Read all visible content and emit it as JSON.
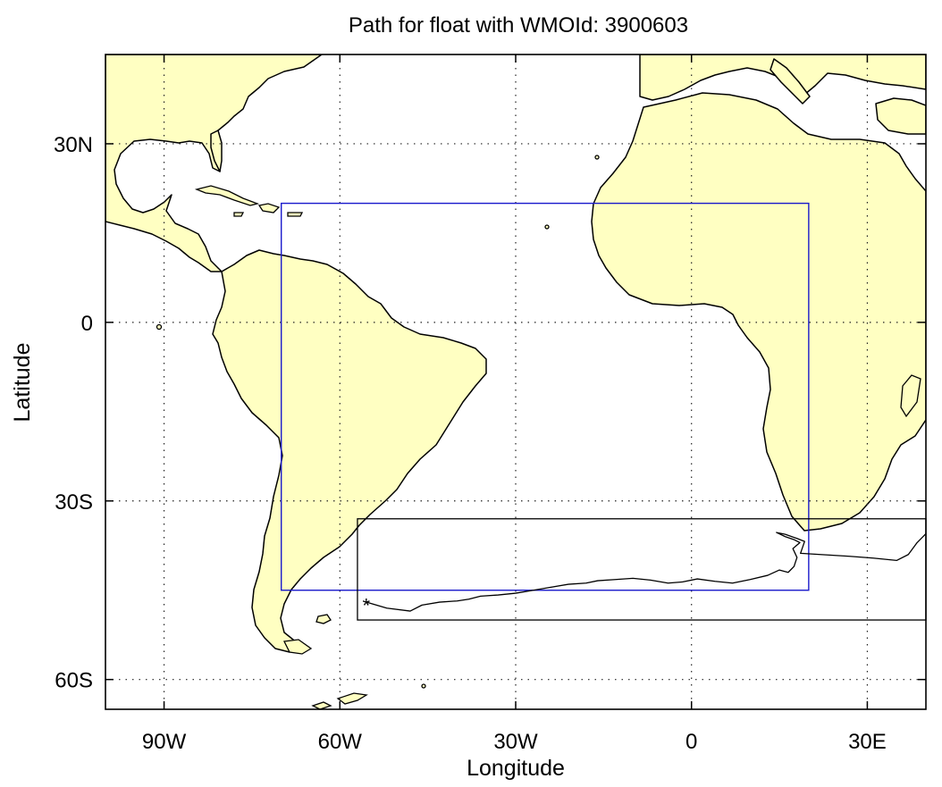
{
  "title": "Path for float with WMOId: 3900603",
  "x_axis": {
    "label": "Longitude",
    "ticks": [
      {
        "value": -90,
        "label": "90W"
      },
      {
        "value": -60,
        "label": "60W"
      },
      {
        "value": -30,
        "label": "30W"
      },
      {
        "value": 0,
        "label": "0"
      },
      {
        "value": 30,
        "label": "30E"
      }
    ],
    "range": [
      -100,
      40
    ]
  },
  "y_axis": {
    "label": "Latitude",
    "ticks": [
      {
        "value": 30,
        "label": "30N"
      },
      {
        "value": 0,
        "label": "0"
      },
      {
        "value": -30,
        "label": "30S"
      },
      {
        "value": -60,
        "label": "60S"
      }
    ],
    "range": [
      -65,
      45
    ]
  },
  "grid": "dotted",
  "colors": {
    "land": "#ffffc2",
    "ocean": "#ffffff",
    "coastline": "#000000",
    "region_box": "#1a1acc",
    "float_box": "#000000",
    "float_path": "#000000"
  },
  "region_box": {
    "lon": [
      -70,
      20
    ],
    "lat": [
      -45,
      20
    ]
  },
  "float_box": {
    "lon": [
      -57,
      40
    ],
    "lat": [
      -50,
      -33
    ]
  },
  "float_start": {
    "lon": -55.5,
    "lat": -47
  },
  "float_path": [
    [
      -55.5,
      -47
    ],
    [
      -52,
      -48
    ],
    [
      -48,
      -48.5
    ],
    [
      -46,
      -47.5
    ],
    [
      -43,
      -47
    ],
    [
      -40,
      -46.8
    ],
    [
      -38,
      -46.5
    ],
    [
      -36,
      -46
    ],
    [
      -33,
      -45.8
    ],
    [
      -30,
      -45.5
    ],
    [
      -27,
      -45
    ],
    [
      -24,
      -44.5
    ],
    [
      -21,
      -44
    ],
    [
      -18,
      -43.8
    ],
    [
      -16,
      -43.4
    ],
    [
      -13,
      -43.2
    ],
    [
      -10,
      -43
    ],
    [
      -7,
      -43.3
    ],
    [
      -4,
      -43.8
    ],
    [
      -1.5,
      -43.6
    ],
    [
      1,
      -43.1
    ],
    [
      4,
      -43.5
    ],
    [
      7,
      -43.8
    ],
    [
      10,
      -43.2
    ],
    [
      13,
      -42.5
    ],
    [
      15,
      -41.6
    ],
    [
      16.5,
      -42
    ],
    [
      17.5,
      -41
    ],
    [
      18,
      -39.5
    ],
    [
      17.3,
      -38
    ],
    [
      18.5,
      -37
    ],
    [
      17.5,
      -36.5
    ],
    [
      16,
      -36
    ],
    [
      14.5,
      -35.3
    ],
    [
      16,
      -35.6
    ],
    [
      18,
      -36.3
    ],
    [
      19.3,
      -36.8
    ],
    [
      18.6,
      -38.8
    ],
    [
      22,
      -39
    ],
    [
      27,
      -39.3
    ],
    [
      31,
      -39.6
    ],
    [
      35,
      -40
    ],
    [
      37,
      -39
    ],
    [
      38.5,
      -37
    ],
    [
      40,
      -35.5
    ]
  ]
}
